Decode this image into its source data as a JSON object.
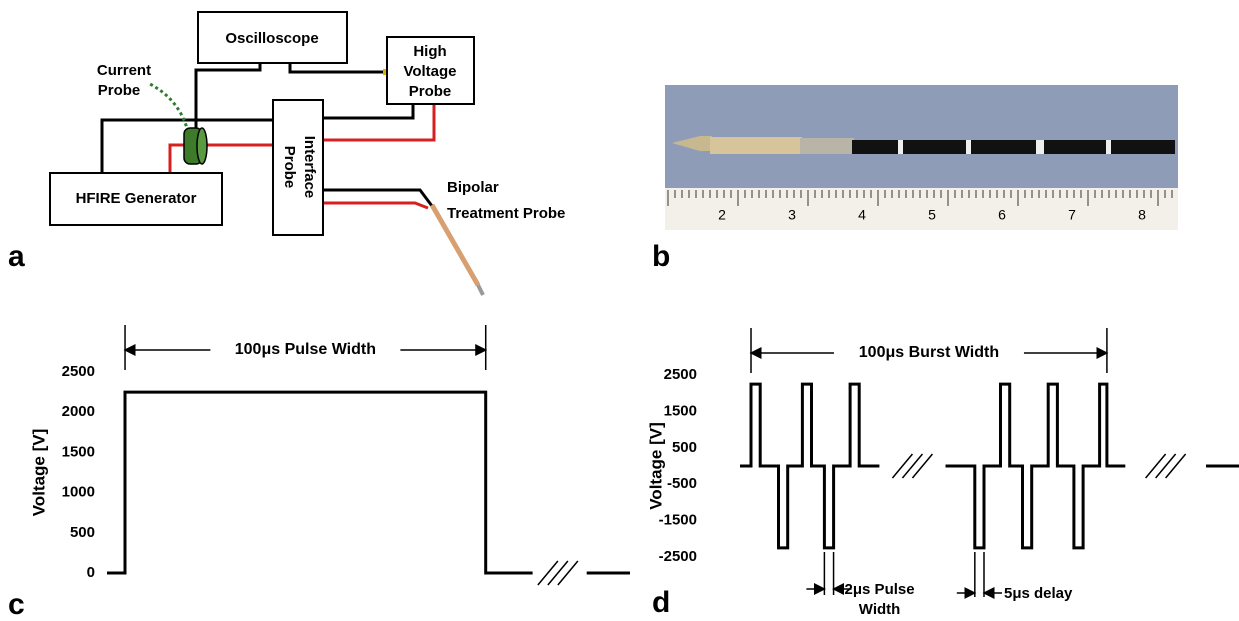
{
  "panel_a": {
    "label": "a",
    "oscilloscope": "Oscilloscope",
    "high_voltage_probe": [
      "High",
      "Voltage",
      "Probe"
    ],
    "current_probe": [
      "Current",
      "Probe"
    ],
    "probe_interface": [
      "Probe",
      "Interface"
    ],
    "generator": "HFIRE Generator",
    "treatment_probe": [
      "Bipolar",
      "Treatment Probe"
    ]
  },
  "panel_b": {
    "label": "b",
    "ruler_labels": [
      2,
      3,
      4,
      5,
      6,
      7,
      8
    ]
  },
  "chart_data": [
    {
      "type": "line",
      "label": "c",
      "ylabel": "Voltage [V]",
      "annotation": "100μs Pulse Width",
      "xlim": [
        -5,
        140
      ],
      "ylim": [
        0,
        2500
      ],
      "yticks": [
        0,
        500,
        1000,
        1500,
        2000,
        2500
      ],
      "color": "#000000",
      "x": [
        -5,
        0,
        0,
        100,
        100,
        113,
        120,
        128,
        140
      ],
      "values": [
        0,
        0,
        2250,
        2250,
        0,
        0,
        null,
        0,
        0
      ]
    },
    {
      "type": "line",
      "label": "d",
      "ylabel": "Voltage [V]",
      "annotation": "100μs Burst Width",
      "pulse_note": [
        "2μs Pulse",
        "Width"
      ],
      "delay_note": "5μs delay",
      "xlim": [
        0,
        136
      ],
      "ylim": [
        -2500,
        2500
      ],
      "yticks": [
        -2500,
        -1500,
        -500,
        500,
        1500,
        2500
      ],
      "color": "#000000",
      "x": [
        0,
        3,
        3,
        5.5,
        5.5,
        10.5,
        10.5,
        13,
        13,
        17,
        17,
        19.5,
        19.5,
        23,
        23,
        25.5,
        25.5,
        30,
        30,
        32.5,
        32.5,
        38,
        47,
        56,
        64,
        64,
        66.5,
        66.5,
        71,
        71,
        73.5,
        73.5,
        77,
        77,
        79.5,
        79.5,
        84,
        84,
        86.5,
        86.5,
        91,
        91,
        93.5,
        93.5,
        98,
        98,
        100,
        100,
        105,
        116,
        127,
        136
      ],
      "values": [
        0,
        0,
        2250,
        2250,
        0,
        0,
        -2250,
        -2250,
        0,
        0,
        2250,
        2250,
        0,
        0,
        -2250,
        -2250,
        0,
        0,
        2250,
        2250,
        0,
        0,
        null,
        0,
        0,
        -2250,
        -2250,
        0,
        0,
        2250,
        2250,
        0,
        0,
        -2250,
        -2250,
        0,
        0,
        2250,
        2250,
        0,
        0,
        -2250,
        -2250,
        0,
        0,
        2250,
        2250,
        0,
        0,
        null,
        0,
        0
      ]
    }
  ]
}
